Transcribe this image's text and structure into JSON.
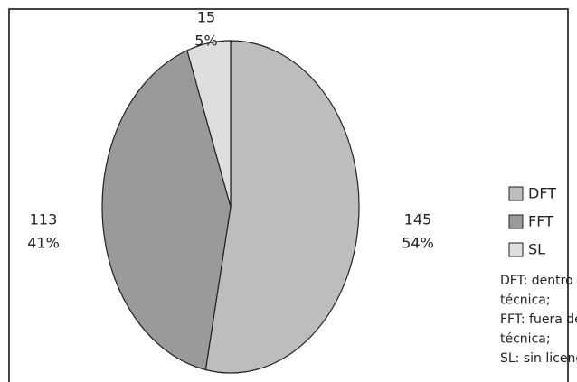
{
  "chart_data": {
    "type": "pie",
    "categories": [
      "DFT",
      "FFT",
      "SL"
    ],
    "values": [
      145,
      113,
      15
    ],
    "percent_labels": [
      "54%",
      "41%",
      "5%"
    ],
    "colors": [
      "#bdbdbd",
      "#9a9a9a",
      "#dedede"
    ],
    "legend": "right",
    "note": [
      "DFT: dentro de ficha",
      "técnica;",
      "FFT: fuera de ficha",
      "técnica;",
      "SL: sin licencia"
    ]
  }
}
